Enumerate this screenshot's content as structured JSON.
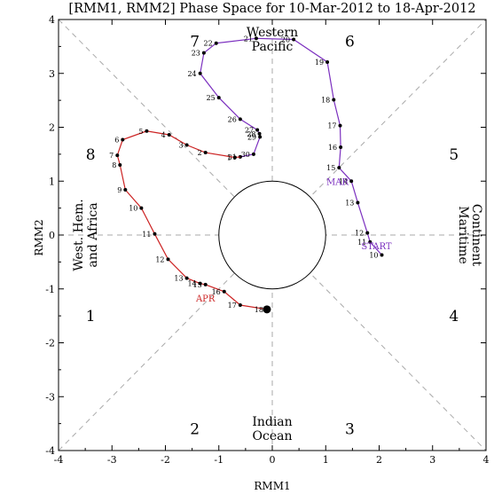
{
  "chart_data": {
    "type": "line",
    "title": "[RMM1, RMM2] Phase Space for 10-Mar-2012 to 18-Apr-2012",
    "xlabel": "RMM1",
    "ylabel": "RMM2",
    "xlim": [
      -4,
      4
    ],
    "ylim": [
      -4,
      4
    ],
    "xticks": [
      "-4",
      "-3",
      "-2",
      "-1",
      "0",
      "1",
      "2",
      "3",
      "4"
    ],
    "yticks": [
      "-4",
      "-3",
      "-2",
      "-1",
      "0",
      "1",
      "2",
      "3",
      "4"
    ],
    "grid": false,
    "unit_circle_radius": 1,
    "phase_numbers": [
      {
        "label": "1",
        "x": -3.4,
        "y": -1.5
      },
      {
        "label": "2",
        "x": -1.45,
        "y": -3.6
      },
      {
        "label": "3",
        "x": 1.45,
        "y": -3.6
      },
      {
        "label": "4",
        "x": 3.4,
        "y": -1.5
      },
      {
        "label": "5",
        "x": 3.4,
        "y": 1.5
      },
      {
        "label": "6",
        "x": 1.45,
        "y": 3.6
      },
      {
        "label": "7",
        "x": -1.45,
        "y": 3.6
      },
      {
        "label": "8",
        "x": -3.4,
        "y": 1.5
      }
    ],
    "region_labels": {
      "top": [
        "Western",
        "Pacific"
      ],
      "bottom": [
        "Indian",
        "Ocean"
      ],
      "left": [
        "West. Hem.",
        "and Africa"
      ],
      "right": [
        "Maritime",
        "Continent"
      ]
    },
    "series": [
      {
        "name": "MAR",
        "color": "#7b2fbf",
        "points": [
          {
            "day": "10",
            "x": 2.05,
            "y": -0.37
          },
          {
            "day": "11",
            "x": 1.83,
            "y": -0.13
          },
          {
            "day": "12",
            "x": 1.78,
            "y": 0.04
          },
          {
            "day": "13",
            "x": 1.6,
            "y": 0.6
          },
          {
            "day": "14",
            "x": 1.48,
            "y": 1.0
          },
          {
            "day": "15",
            "x": 1.25,
            "y": 1.25
          },
          {
            "day": "16",
            "x": 1.28,
            "y": 1.63
          },
          {
            "day": "17",
            "x": 1.27,
            "y": 2.03
          },
          {
            "day": "18",
            "x": 1.15,
            "y": 2.51
          },
          {
            "day": "19",
            "x": 1.03,
            "y": 3.21
          },
          {
            "day": "20",
            "x": 0.4,
            "y": 3.63
          },
          {
            "day": "21",
            "x": -0.3,
            "y": 3.65
          },
          {
            "day": "22",
            "x": -1.05,
            "y": 3.56
          },
          {
            "day": "23",
            "x": -1.28,
            "y": 3.38
          },
          {
            "day": "24",
            "x": -1.35,
            "y": 3.0
          },
          {
            "day": "25",
            "x": -1.0,
            "y": 2.55
          },
          {
            "day": "26",
            "x": -0.6,
            "y": 2.15
          },
          {
            "day": "27",
            "x": -0.28,
            "y": 1.95
          },
          {
            "day": "28",
            "x": -0.24,
            "y": 1.88
          },
          {
            "day": "29",
            "x": -0.23,
            "y": 1.82
          },
          {
            "day": "30",
            "x": -0.35,
            "y": 1.5
          },
          {
            "day": "31",
            "x": -0.6,
            "y": 1.45
          }
        ]
      },
      {
        "name": "APR",
        "color": "#cc2222",
        "points": [
          {
            "day": "1",
            "x": -0.7,
            "y": 1.44
          },
          {
            "day": "2",
            "x": -1.25,
            "y": 1.53
          },
          {
            "day": "3",
            "x": -1.6,
            "y": 1.67
          },
          {
            "day": "4",
            "x": -1.93,
            "y": 1.86
          },
          {
            "day": "5",
            "x": -2.35,
            "y": 1.93
          },
          {
            "day": "6",
            "x": -2.8,
            "y": 1.77
          },
          {
            "day": "7",
            "x": -2.9,
            "y": 1.48
          },
          {
            "day": "8",
            "x": -2.85,
            "y": 1.3
          },
          {
            "day": "9",
            "x": -2.75,
            "y": 0.84
          },
          {
            "day": "10",
            "x": -2.45,
            "y": 0.5
          },
          {
            "day": "11",
            "x": -2.2,
            "y": 0.02
          },
          {
            "day": "12",
            "x": -1.95,
            "y": -0.45
          },
          {
            "day": "13",
            "x": -1.6,
            "y": -0.8
          },
          {
            "day": "14",
            "x": -1.35,
            "y": -0.9
          },
          {
            "day": "15",
            "x": -1.25,
            "y": -0.92
          },
          {
            "day": "16",
            "x": -0.9,
            "y": -1.05
          },
          {
            "day": "17",
            "x": -0.6,
            "y": -1.3
          },
          {
            "day": "18",
            "x": -0.1,
            "y": -1.38
          }
        ]
      }
    ],
    "annotations": {
      "start": {
        "text": "START",
        "x": 1.95,
        "y": -0.2
      },
      "month_labels": [
        {
          "text": "MAR",
          "x": 1.22,
          "y": 1.0,
          "series": 0
        },
        {
          "text": "APR",
          "x": -1.25,
          "y": -1.17,
          "series": 1
        }
      ]
    }
  }
}
